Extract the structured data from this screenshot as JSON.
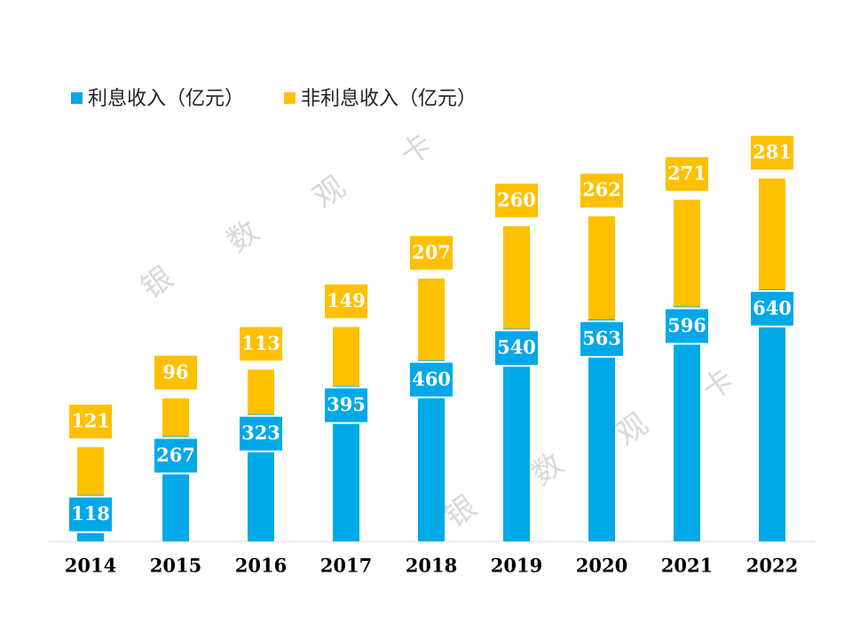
{
  "chart_data": {
    "type": "stacked-bar",
    "categories": [
      "2014",
      "2015",
      "2016",
      "2017",
      "2018",
      "2019",
      "2020",
      "2021",
      "2022"
    ],
    "series": [
      {
        "name": "利息收入（亿元）",
        "color": "#00a8e8",
        "values": [
          118,
          267,
          323,
          395,
          460,
          540,
          563,
          596,
          640
        ]
      },
      {
        "name": "非利息收入（亿元）",
        "color": "#ffc000",
        "values": [
          121,
          96,
          113,
          149,
          207,
          260,
          262,
          271,
          281
        ]
      }
    ],
    "ylim": [
      0,
      1000
    ],
    "watermark": [
      "银",
      "数",
      "观",
      "卡"
    ]
  }
}
